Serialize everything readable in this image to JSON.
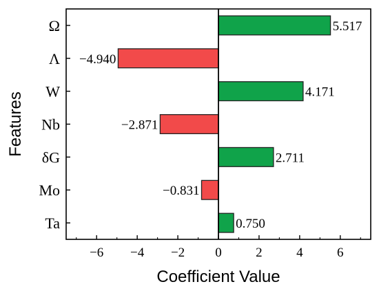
{
  "chart_data": {
    "type": "bar",
    "orientation": "horizontal",
    "title": "",
    "xlabel": "Coefficient Value",
    "ylabel": "Features",
    "categories": [
      "Ω",
      "Λ",
      "W",
      "Nb",
      "δG",
      "Mo",
      "Ta"
    ],
    "values": [
      5.517,
      -4.94,
      4.171,
      -2.871,
      2.711,
      -0.831,
      0.75
    ],
    "value_labels": [
      "5.517",
      "−4.940",
      "4.171",
      "−2.871",
      "2.711",
      "−0.831",
      "0.750"
    ],
    "xlim": [
      -7.5,
      7.5
    ],
    "xticks": [
      -6,
      -4,
      -2,
      0,
      2,
      4,
      6
    ],
    "xtick_labels": [
      "−6",
      "−4",
      "−2",
      "0",
      "2",
      "4",
      "6"
    ],
    "grid": false,
    "legend": "none",
    "colors": {
      "positive": "#10a34a",
      "negative": "#f24a4a",
      "edge": "#222222"
    }
  }
}
